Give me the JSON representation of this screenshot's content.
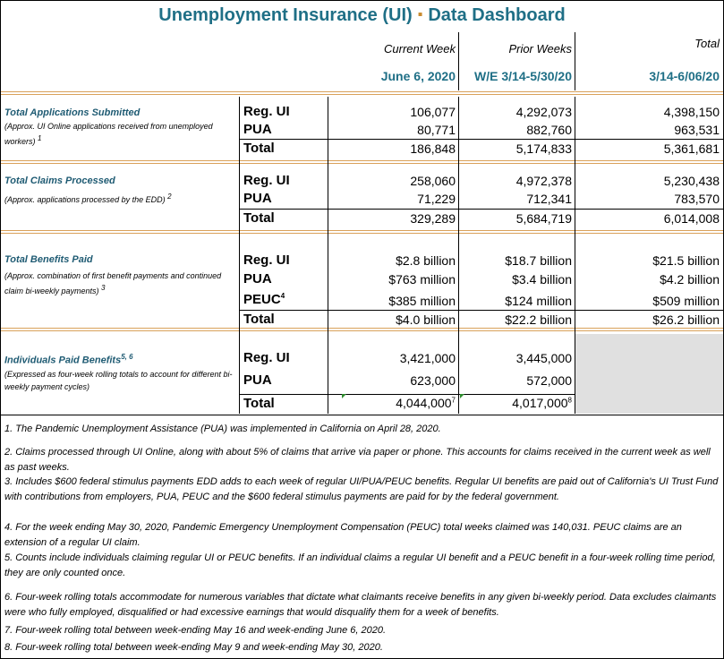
{
  "title": {
    "left": "Unemployment Insurance (UI)",
    "sep": "▪",
    "right": "Data Dashboard"
  },
  "columns": {
    "current_week": "Current Week",
    "prior_weeks": "Prior Weeks",
    "total": "Total",
    "current_date": "June 6, 2020",
    "prior_date": "W/E 3/14-5/30/20",
    "total_date": "3/14-6/06/20"
  },
  "sections": {
    "apps": {
      "title": "Total Applications Submitted",
      "sub": "(Approx. UI Online applications received from unemployed workers)",
      "sup": "1",
      "rows": [
        {
          "label": "Reg. UI",
          "current": "106,077",
          "prior": "4,292,073",
          "total": "4,398,150"
        },
        {
          "label": "PUA",
          "current": "80,771",
          "prior": "882,760",
          "total": "963,531"
        },
        {
          "label": "Total",
          "current": "186,848",
          "prior": "5,174,833",
          "total": "5,361,681"
        }
      ]
    },
    "claims": {
      "title": "Total Claims Processed",
      "sub": "(Approx. applications processed by the EDD)",
      "sup": "2",
      "rows": [
        {
          "label": "Reg. UI",
          "current": "258,060",
          "prior": "4,972,378",
          "total": "5,230,438"
        },
        {
          "label": "PUA",
          "current": "71,229",
          "prior": "712,341",
          "total": "783,570"
        },
        {
          "label": "Total",
          "current": "329,289",
          "prior": "5,684,719",
          "total": "6,014,008"
        }
      ]
    },
    "benefits": {
      "title": "Total Benefits Paid",
      "sub": "(Approx. combination of first benefit payments and continued claim bi-weekly payments)",
      "sup": "3",
      "rows": [
        {
          "label": "Reg. UI",
          "current": "$2.8 billion",
          "prior": "$18.7 billion",
          "total": "$21.5 billion"
        },
        {
          "label": "PUA",
          "current": "$763 million",
          "prior": "$3.4 billion",
          "total": "$4.2 billion"
        },
        {
          "label": "PEUC",
          "label_sup": "4",
          "current": "$385 million",
          "prior": "$124 million",
          "total": "$509 million"
        },
        {
          "label": "Total",
          "current": "$4.0 billion",
          "prior": "$22.2 billion",
          "total": "$26.2 billion"
        }
      ]
    },
    "individuals": {
      "title": "Individuals Paid Benefits",
      "title_sup": "5, 6",
      "sub": "(Expressed as four-week rolling totals to account for different bi-weekly payment cycles)",
      "rows": [
        {
          "label": "Reg. UI",
          "current": "3,421,000",
          "prior": "3,445,000"
        },
        {
          "label": "PUA",
          "current": "623,000",
          "prior": "572,000"
        },
        {
          "label": "Total",
          "current": "4,044,000",
          "current_sup": "7",
          "prior": "4,017,000",
          "prior_sup": "8"
        }
      ]
    }
  },
  "footnotes": [
    "1. The Pandemic Unemployment Assistance (PUA) was implemented in California on April 28, 2020.",
    "2. Claims processed through UI Online, along with about 5% of claims that arrive via paper or phone.  This accounts for claims received in the current week as well as past weeks.",
    "3. Includes $600 federal stimulus payments EDD adds to each week of regular UI/PUA/PEUC benefits. Regular UI benefits are paid out of California's UI Trust Fund with contributions from employers, PUA, PEUC and the $600 federal stimulus payments are paid for by the federal government.",
    "4. For the week ending May 30, 2020, Pandemic Emergency Unemployment Compensation (PEUC) total weeks claimed was 140,031. PEUC claims are an extension of a regular UI claim.",
    "5. Counts include individuals claiming regular UI or PEUC benefits.  If an individual claims a regular UI benefit and a PEUC benefit in a four-week rolling time period, they are only counted once.",
    "6.  Four-week rolling totals accommodate for numerous variables that dictate what claimants receive benefits in any given bi-weekly period. Data excludes claimants were who fully employed, disqualified or had excessive earnings that would disqualify them for a week of benefits.",
    "7.  Four-week rolling total between week-ending May 16 and week-ending June 6, 2020.",
    "8. Four-week rolling total between week-ending May 9 and week-ending May 30, 2020."
  ],
  "colors": {
    "title": "#1f6f86",
    "accent": "#c98b2f",
    "rule": "#d9a15a",
    "section_title": "#1f5b73",
    "grey_cell": "#e0e0e0"
  }
}
